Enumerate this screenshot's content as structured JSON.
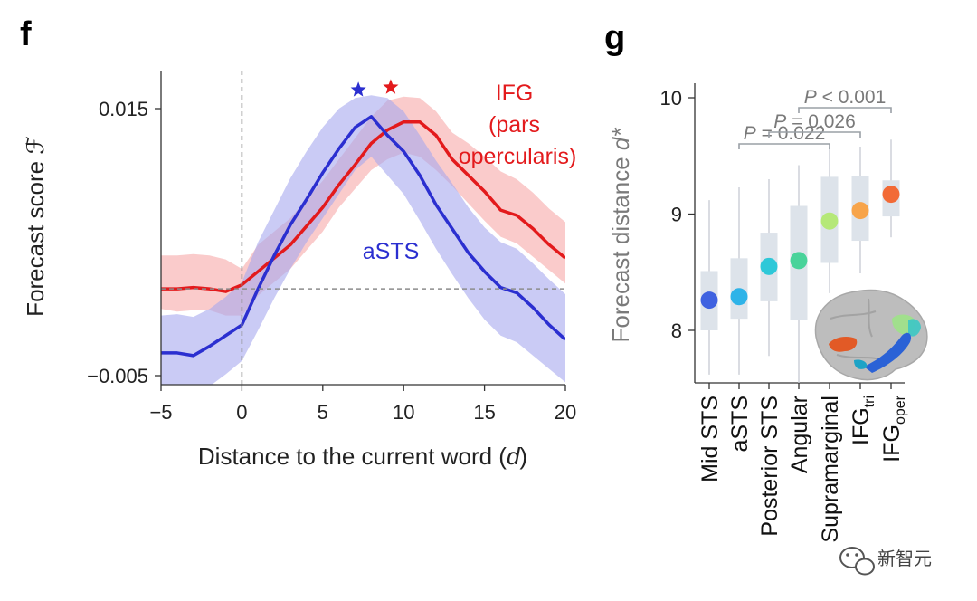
{
  "panel_f": {
    "letter": "f",
    "xlabel": "Distance to the current word (",
    "xlabel_var": "d",
    "xlabel_close": ")",
    "ylabel": "Forecast score ",
    "ylabel_var": "ℱ",
    "series_labels": {
      "ifg": [
        "IFG",
        "(pars",
        "opercularis)"
      ],
      "asts": "aSTS"
    }
  },
  "panel_g": {
    "letter": "g",
    "ylabel": "Forecast distance ",
    "ylabel_var": "d*",
    "pvalues": [
      {
        "italic": "P",
        "rest": " = 0.022"
      },
      {
        "italic": "P",
        "rest": " = 0.026"
      },
      {
        "italic": "P",
        "rest": " < 0.001"
      }
    ]
  },
  "watermark": {
    "text": "新智元",
    "icon": "wechat-logo-icon"
  },
  "colors": {
    "ifg_line": "#e31a1c",
    "ifg_band": "#f7a8a8",
    "asts_line": "#2b2fd0",
    "asts_band": "#a7a9ee",
    "box_fill": "#dde3ea",
    "whisker": "#d0d4da",
    "bracket": "#9aa0a6"
  },
  "chart_data": [
    {
      "type": "line",
      "x_axis": {
        "range": [
          -5,
          20
        ],
        "ticks": [
          -5,
          0,
          5,
          10,
          15,
          20
        ],
        "tick_labels": [
          "−5",
          "0",
          "5",
          "10",
          "15",
          "20"
        ]
      },
      "y_axis": {
        "range": [
          -0.005,
          0.015
        ],
        "ticks": [
          -0.005,
          0.015
        ],
        "tick_labels": [
          "−0.005",
          "0.015"
        ]
      },
      "reference_lines": {
        "x": 0,
        "y": 0.0015
      },
      "series": [
        {
          "name": "IFG (pars opercularis)",
          "color": "#e31a1c",
          "x": [
            -5,
            -4,
            -3,
            -2,
            -1,
            0,
            1,
            2,
            3,
            4,
            5,
            6,
            7,
            8,
            9,
            10,
            11,
            12,
            13,
            14,
            15,
            16,
            17,
            18,
            19,
            20
          ],
          "y": [
            0.0015,
            0.0015,
            0.0016,
            0.0015,
            0.0013,
            0.0018,
            0.0028,
            0.0038,
            0.0048,
            0.0062,
            0.0076,
            0.0093,
            0.0108,
            0.0124,
            0.0134,
            0.014,
            0.014,
            0.013,
            0.0112,
            0.01,
            0.0088,
            0.0074,
            0.007,
            0.006,
            0.0048,
            0.0038
          ],
          "upper": [
            0.004,
            0.004,
            0.0041,
            0.004,
            0.0037,
            0.003,
            0.0048,
            0.0058,
            0.0068,
            0.0082,
            0.0096,
            0.0112,
            0.0128,
            0.0144,
            0.0156,
            0.0159,
            0.0158,
            0.0148,
            0.0132,
            0.0124,
            0.0114,
            0.0103,
            0.0097,
            0.0087,
            0.0075,
            0.0065
          ],
          "lower": [
            0.0,
            -0.0002,
            -0.0001,
            -0.0001,
            -0.0005,
            -0.0005,
            0.001,
            0.002,
            0.003,
            0.0044,
            0.0058,
            0.0076,
            0.009,
            0.0104,
            0.0112,
            0.0117,
            0.0114,
            0.0104,
            0.0092,
            0.0079,
            0.0066,
            0.0054,
            0.0049,
            0.0039,
            0.0029,
            0.0019
          ],
          "peak_marker": {
            "x": 9.2,
            "y": 0.0166,
            "symbol": "star"
          }
        },
        {
          "name": "aSTS",
          "color": "#2b2fd0",
          "x": [
            -5,
            -4,
            -3,
            -2,
            -1,
            0,
            1,
            2,
            3,
            4,
            5,
            6,
            7,
            8,
            9,
            10,
            11,
            12,
            13,
            14,
            15,
            16,
            17,
            18,
            19,
            20
          ],
          "y": [
            -0.0033,
            -0.0033,
            -0.0035,
            -0.0028,
            -0.002,
            -0.0012,
            0.0015,
            0.004,
            0.0063,
            0.0082,
            0.0102,
            0.012,
            0.0136,
            0.0144,
            0.013,
            0.0118,
            0.01,
            0.0078,
            0.006,
            0.0042,
            0.0028,
            0.0016,
            0.0012,
            0.0001,
            -0.0012,
            -0.0023
          ],
          "upper": [
            -0.0005,
            -0.0004,
            -0.0006,
            0.0,
            0.0009,
            0.002,
            0.005,
            0.0074,
            0.0098,
            0.0118,
            0.0136,
            0.015,
            0.0158,
            0.016,
            0.0158,
            0.0148,
            0.013,
            0.0111,
            0.0094,
            0.0076,
            0.0061,
            0.005,
            0.0045,
            0.0034,
            0.0022,
            0.0011
          ],
          "lower": [
            -0.006,
            -0.0062,
            -0.0064,
            -0.0058,
            -0.0049,
            -0.0039,
            -0.0016,
            0.0008,
            0.003,
            0.005,
            0.0068,
            0.0086,
            0.0104,
            0.0114,
            0.01,
            0.0086,
            0.0066,
            0.0045,
            0.0026,
            0.0008,
            -0.0008,
            -0.002,
            -0.0025,
            -0.0035,
            -0.0045,
            -0.0055
          ],
          "peak_marker": {
            "x": 7.2,
            "y": 0.0164,
            "symbol": "star"
          }
        }
      ]
    },
    {
      "type": "box",
      "y_axis": {
        "range": [
          7.55,
          10.2
        ],
        "ticks": [
          8,
          9,
          10
        ],
        "tick_labels": [
          "8",
          "9",
          "10"
        ]
      },
      "categories": [
        {
          "label": "Mid STS",
          "sub": ""
        },
        {
          "label": "aSTS",
          "sub": ""
        },
        {
          "label": "Posterior STS",
          "sub": ""
        },
        {
          "label": "Angular",
          "sub": ""
        },
        {
          "label": "Supramarginal",
          "sub": ""
        },
        {
          "label": "IFG",
          "sub": "tri"
        },
        {
          "label": "IFG",
          "sub": "oper"
        }
      ],
      "boxes": [
        {
          "whisker_low": 7.62,
          "q1": 8.0,
          "median": 8.26,
          "q3": 8.51,
          "whisker_high": 9.12,
          "point": 8.26,
          "color": "#3f62e0"
        },
        {
          "whisker_low": 7.62,
          "q1": 8.1,
          "median": 8.29,
          "q3": 8.62,
          "whisker_high": 9.23,
          "point": 8.29,
          "color": "#2eb3e8"
        },
        {
          "whisker_low": 7.78,
          "q1": 8.25,
          "median": 8.55,
          "q3": 8.84,
          "whisker_high": 9.3,
          "point": 8.55,
          "color": "#2ec8d8"
        },
        {
          "whisker_low": 7.55,
          "q1": 8.09,
          "median": 8.6,
          "q3": 9.07,
          "whisker_high": 9.42,
          "point": 8.6,
          "color": "#49d39a"
        },
        {
          "whisker_low": 8.32,
          "q1": 8.58,
          "median": 8.94,
          "q3": 9.32,
          "whisker_high": 9.58,
          "point": 8.94,
          "color": "#b5e878"
        },
        {
          "whisker_low": 8.49,
          "q1": 8.77,
          "median": 9.03,
          "q3": 9.33,
          "whisker_high": 9.58,
          "point": 9.03,
          "color": "#f7a44a"
        },
        {
          "whisker_low": 8.8,
          "q1": 8.98,
          "median": 9.17,
          "q3": 9.29,
          "whisker_high": 9.64,
          "point": 9.17,
          "color": "#f26a36"
        }
      ],
      "comparisons": [
        {
          "from": 1,
          "to": 4,
          "label": "P = 0.022"
        },
        {
          "from": 2,
          "to": 5,
          "label": "P = 0.026"
        },
        {
          "from": 3,
          "to": 6,
          "label": "P < 0.001"
        }
      ]
    }
  ]
}
